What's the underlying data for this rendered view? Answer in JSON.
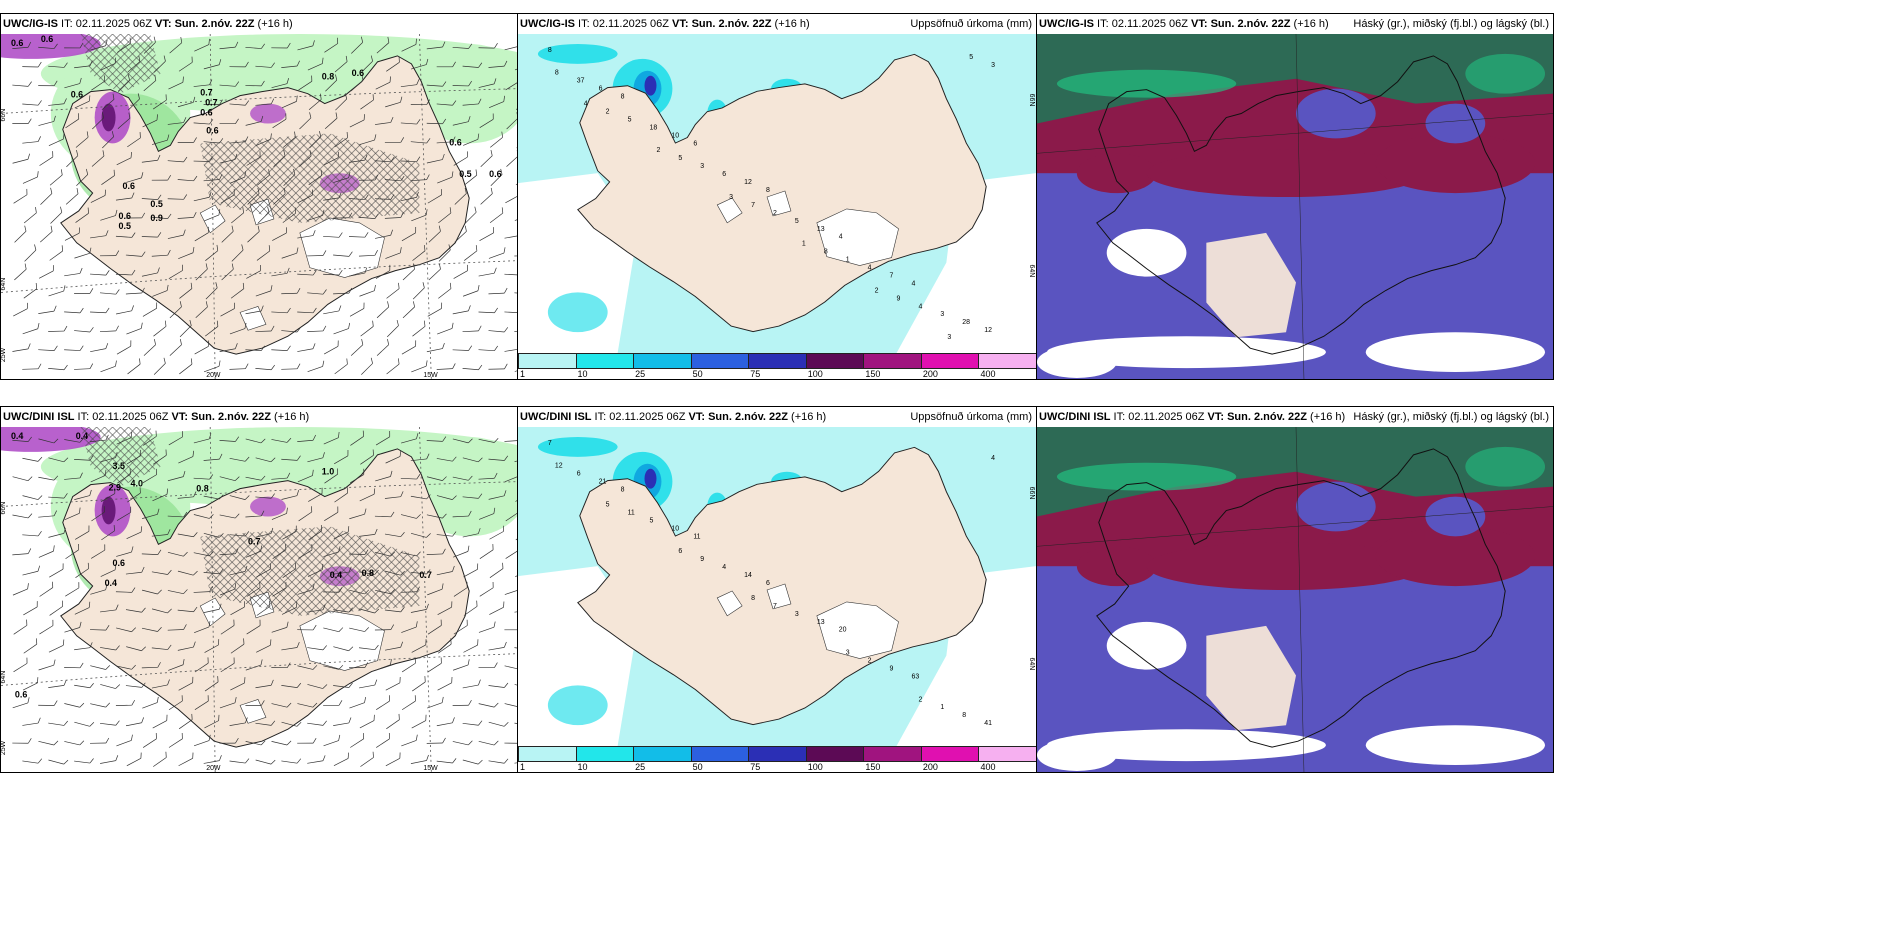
{
  "panels": [
    {
      "id": "p1",
      "type": "wind",
      "header_bold": "UWC/IG-IS",
      "header_mid": " IT: 02.11.2025 06Z ",
      "header_vt": "VT: Sun. 2.nóv. 22Z",
      "header_tail": " (+16 h)",
      "header_right": "",
      "lat_labels": [
        "66N",
        "64N"
      ],
      "lon_labels": [
        "20W",
        "15W",
        "25W"
      ],
      "values": [
        "0.6",
        "0.6",
        "0.7",
        "0.6",
        "0.8",
        "0.6",
        "0.7",
        "0.6",
        "0.6",
        "0.5",
        "0.5",
        "0.9",
        "0.6",
        "0.5",
        "0.6",
        "0.6",
        "0.6"
      ]
    },
    {
      "id": "p2",
      "type": "precip",
      "header_bold": "UWC/IG-IS",
      "header_mid": " IT: 02.11.2025 06Z ",
      "header_vt": "VT: Sun. 2.nóv. 22Z",
      "header_tail": " (+16 h)",
      "header_right": "Uppsöfnuð úrkoma (mm)",
      "lat_labels": [
        "66N",
        "64N"
      ],
      "values": [
        "8",
        "8",
        "6",
        "8",
        "4",
        "4",
        "12",
        "6",
        "10",
        "12",
        "13",
        "7",
        "28",
        "37",
        "18",
        "6",
        "5",
        "4",
        "3",
        "8",
        "5",
        "3",
        "2",
        "1",
        "4",
        "3",
        "2",
        "5",
        "7",
        "8",
        "9",
        "5",
        "4",
        "2",
        "3",
        "1",
        "2",
        "3"
      ]
    },
    {
      "id": "p3",
      "type": "cloud",
      "header_bold": "UWC/IG-IS",
      "header_mid": " IT: 02.11.2025 06Z ",
      "header_vt": "VT: Sun. 2.nóv. 22Z",
      "header_tail": " (+16 h)",
      "header_right": "Háský (gr.), miðský (fj.bl.) og lágský (bl.)"
    },
    {
      "id": "p4",
      "type": "wind",
      "header_bold": "UWC/DINI ISL",
      "header_mid": " IT: 02.11.2025 06Z ",
      "header_vt": "VT: Sun. 2.nóv. 22Z",
      "header_tail": " (+16 h)",
      "header_right": "",
      "lat_labels": [
        "66N",
        "64N"
      ],
      "lon_labels": [
        "20W",
        "15W",
        "25W"
      ],
      "values": [
        "0.4",
        "0.4",
        "3.5",
        "2.9",
        "4.0",
        "1.0",
        "0.8",
        "0.7",
        "0.8",
        "0.4",
        "0.4",
        "0.7",
        "0.6",
        "0.6"
      ]
    },
    {
      "id": "p5",
      "type": "precip",
      "header_bold": "UWC/DINI ISL",
      "header_mid": " IT: 02.11.2025 06Z ",
      "header_vt": "VT: Sun. 2.nóv. 22Z",
      "header_tail": " (+16 h)",
      "header_right": "Uppsöfnuð úrkoma (mm)",
      "lat_labels": [
        "66N",
        "64N"
      ],
      "values": [
        "7",
        "8",
        "11",
        "6",
        "20",
        "63",
        "41",
        "21",
        "10",
        "14",
        "13",
        "9",
        "8",
        "6",
        "5",
        "4",
        "3",
        "2",
        "1",
        "12",
        "11",
        "9",
        "7",
        "3",
        "2",
        "4",
        "5",
        "6",
        "8"
      ]
    },
    {
      "id": "p6",
      "type": "cloud",
      "header_bold": "UWC/DINI ISL",
      "header_mid": " IT: 02.11.2025 06Z ",
      "header_vt": "VT: Sun. 2.nóv. 22Z",
      "header_tail": " (+16 h)",
      "header_right": "Háský (gr.), miðský (fj.bl.) og lágský (bl.)"
    }
  ],
  "colorbar": {
    "colors": [
      "#b8f4f4",
      "#22e6ea",
      "#12bde8",
      "#2c60e0",
      "#2b2fb5",
      "#5c0a55",
      "#a0147f",
      "#e010b0",
      "#f6b0f0"
    ],
    "ticks": [
      "1",
      "10",
      "25",
      "50",
      "75",
      "100",
      "150",
      "200",
      "400"
    ]
  },
  "palette": {
    "land": "#f5e6d8",
    "sea_green": "#c5f5c5",
    "sea_green2": "#8fe08f",
    "purple": "#b050c8",
    "dark_purple": "#6a1a7a",
    "precip_sea": "#b8f4f4",
    "precip_cyan": "#30e0ea",
    "precip_blue": "#10a8e0",
    "cloud_high": "#2d6a55",
    "cloud_mid": "#8b1a4a",
    "cloud_low": "#5a54c0",
    "cloud_green": "#22c080"
  }
}
